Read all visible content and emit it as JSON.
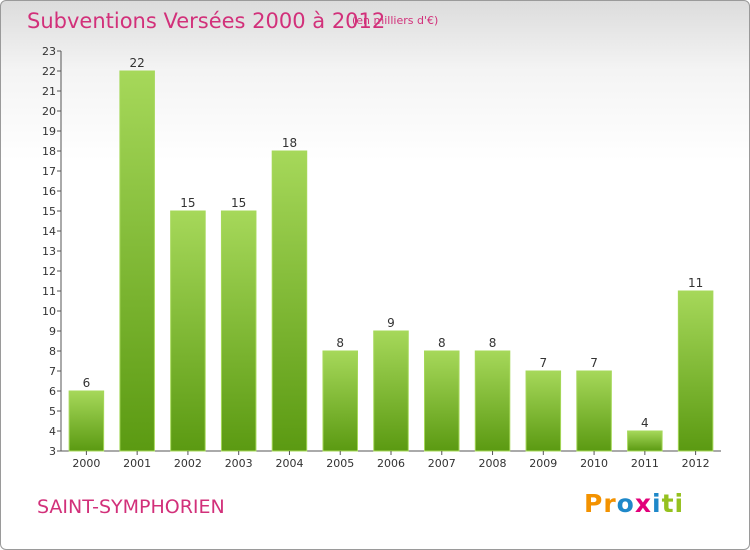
{
  "header": {
    "title": "Subventions Versées 2000 à 2012",
    "subtitle": "(en milliers d'€)"
  },
  "footer": {
    "commune": "SAINT-SYMPHORIEN",
    "logo": {
      "letters": [
        "P",
        "r",
        "o",
        "x",
        "i",
        "t",
        "i"
      ],
      "colors": [
        "#f39200",
        "#f39200",
        "#1e88c9",
        "#e2007a",
        "#1e88c9",
        "#95c11f",
        "#95c11f"
      ]
    }
  },
  "chart_data": {
    "type": "bar",
    "categories": [
      "2000",
      "2001",
      "2002",
      "2003",
      "2004",
      "2005",
      "2006",
      "2007",
      "2008",
      "2009",
      "2010",
      "2011",
      "2012"
    ],
    "values": [
      6,
      22,
      15,
      15,
      18,
      8,
      9,
      8,
      8,
      7,
      7,
      4,
      11
    ],
    "data_labels": [
      "6",
      "22",
      "15",
      "15",
      "18",
      "8",
      "9",
      "8",
      "8",
      "7",
      "7",
      "4",
      "11"
    ],
    "y_ticks": [
      "3",
      "4",
      "5",
      "6",
      "7",
      "8",
      "9",
      "10",
      "11",
      "12",
      "13",
      "14",
      "15",
      "16",
      "17",
      "18",
      "19",
      "20",
      "21",
      "22",
      "23"
    ],
    "ylim": [
      3,
      23
    ],
    "grid": false,
    "bar_color": "#7fbf2a",
    "bar_color_light": "#a6d85a",
    "bar_color_dark": "#5b9a12"
  }
}
